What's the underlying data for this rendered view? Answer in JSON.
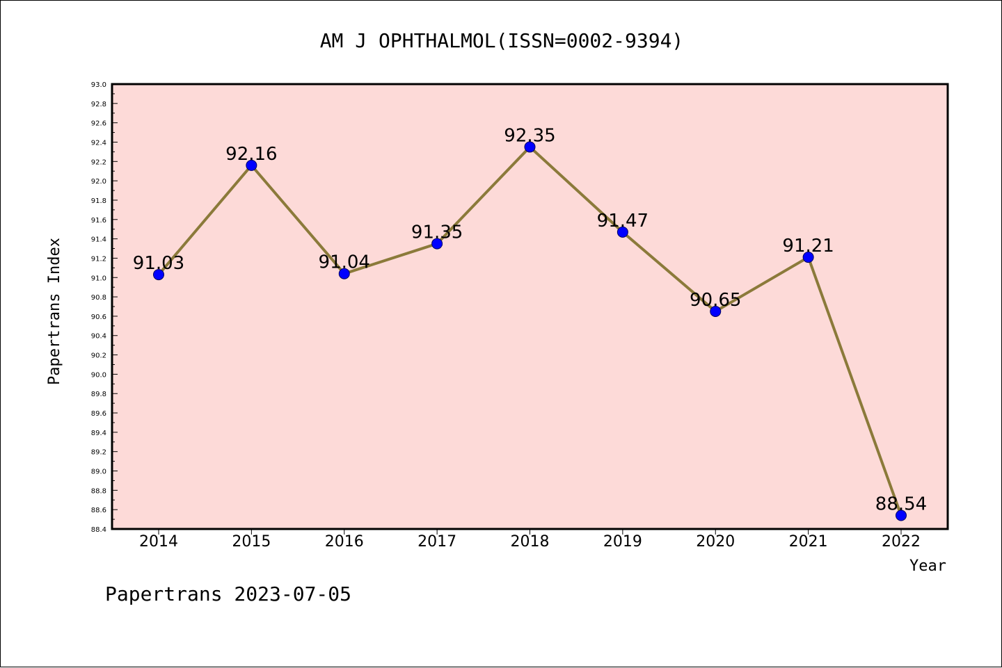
{
  "chart_data": {
    "type": "line",
    "title": "AM J OPHTHALMOL(ISSN=0002-9394)",
    "xlabel": "Year",
    "ylabel": "Papertrans Index",
    "categories": [
      "2014",
      "2015",
      "2016",
      "2017",
      "2018",
      "2019",
      "2020",
      "2021",
      "2022"
    ],
    "values": [
      91.03,
      92.16,
      91.04,
      91.35,
      92.35,
      91.47,
      90.65,
      91.21,
      88.54
    ],
    "data_labels": [
      "91.03",
      "92.16",
      "91.04",
      "91.35",
      "92.35",
      "91.47",
      "90.65",
      "91.21",
      "88.54"
    ],
    "ylim": [
      88.4,
      93.0
    ],
    "y_ticks": [
      "88.4",
      "88.6",
      "88.8",
      "89.0",
      "89.2",
      "89.4",
      "89.6",
      "89.8",
      "90.0",
      "90.2",
      "90.4",
      "90.6",
      "90.8",
      "91.0",
      "91.2",
      "91.4",
      "91.6",
      "91.8",
      "92.0",
      "92.2",
      "92.4",
      "92.6",
      "92.8",
      "93.0"
    ],
    "grid": false,
    "legend": "none",
    "colors": {
      "plot_background": "#fddad8",
      "line": "#8b7a3a",
      "marker": "#0000ff",
      "axes": "#000000"
    }
  },
  "footer": "Papertrans 2023-07-05"
}
